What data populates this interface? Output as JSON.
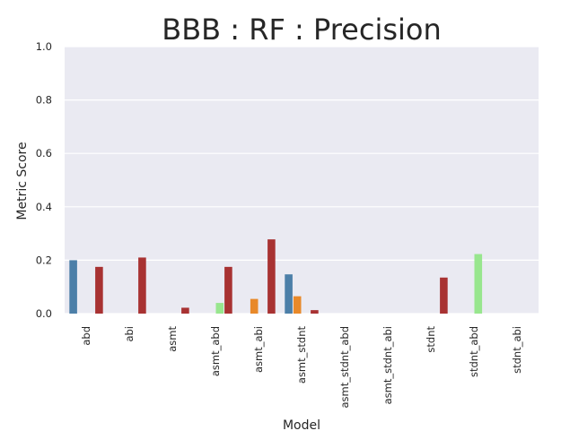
{
  "chart_data": {
    "type": "bar",
    "title": "BBB : RF : Precision",
    "xlabel": "Model",
    "ylabel": "Metric Score",
    "ylim": [
      0,
      1.0
    ],
    "yticks": [
      "0.0",
      "0.2",
      "0.4",
      "0.6",
      "0.8",
      "1.0"
    ],
    "grid": true,
    "legend": "none",
    "categories": [
      "abd",
      "abi",
      "asmt",
      "asmt_abd",
      "asmt_abi",
      "asmt_stdnt",
      "asmt_stdnt_abd",
      "asmt_stdnt_abi",
      "stdnt",
      "stdnt_abd",
      "stdnt_abi"
    ],
    "series": [
      {
        "color": "#4c7fa8",
        "values": [
          0.2,
          0,
          0,
          0,
          0,
          0.147,
          0,
          0,
          0,
          0,
          0
        ]
      },
      {
        "color": "#e8892a",
        "values": [
          0,
          0,
          0,
          0,
          0.055,
          0.065,
          0,
          0,
          0,
          0,
          0
        ]
      },
      {
        "color": "#98e68e",
        "values": [
          0,
          0,
          0,
          0.04,
          0,
          0,
          0,
          0,
          0,
          0.223,
          0
        ]
      },
      {
        "color": "#a83232",
        "values": [
          0.175,
          0.21,
          0.022,
          0.175,
          0.278,
          0.013,
          0,
          0,
          0.135,
          0,
          0
        ]
      }
    ],
    "background": "#eaeaf2"
  }
}
